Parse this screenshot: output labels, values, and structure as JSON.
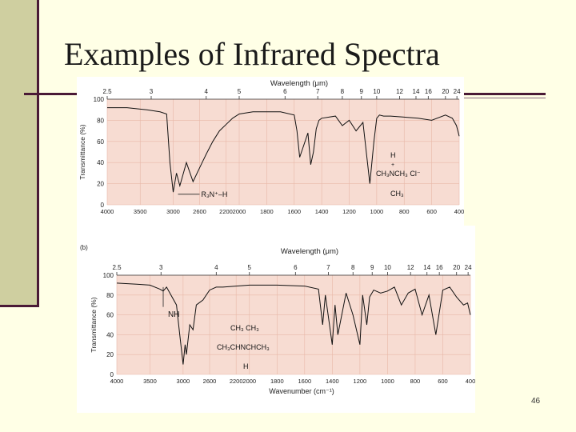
{
  "slide": {
    "title": "Examples of Infrared Spectra",
    "slide_number": "46",
    "colors": {
      "left_bar": "#cfcfa0",
      "accent": "#4a1a36",
      "background": "#ffffe6",
      "plot_fill": "#f7dcd2"
    }
  },
  "chart_data": [
    {
      "type": "line",
      "xlabel": "",
      "top_label": "Wavelength (μm)",
      "ylabel": "Transmittance (%)",
      "xlim": [
        4000,
        400
      ],
      "ylim": [
        0,
        100
      ],
      "x_ticks": [
        "4000",
        "3500",
        "3000",
        "2600",
        "2200",
        "2000",
        "1800",
        "1600",
        "1400",
        "1200",
        "1000",
        "800",
        "600",
        "400"
      ],
      "y_ticks": [
        "100",
        "80",
        "60",
        "40",
        "20",
        "0"
      ],
      "wavelength_ticks": [
        "2.5",
        "3",
        "4",
        "5",
        "6",
        "7",
        "8",
        "9",
        "10",
        "12",
        "14",
        "16",
        "20",
        "24"
      ],
      "annotations": {
        "peak": "R₃N⁺–H",
        "structure": [
          "H",
          "+",
          "CH₃NCH₃  Cl⁻",
          "CH₃"
        ]
      },
      "series": [
        {
          "x": [
            4000,
            3700,
            3400,
            3200,
            3100,
            3050,
            3000,
            2950,
            2900,
            2800,
            2700,
            2600,
            2500,
            2400,
            2300,
            2200,
            2100,
            2000,
            1900,
            1800,
            1700,
            1600,
            1580,
            1560,
            1500,
            1480,
            1460,
            1440,
            1420,
            1400,
            1300,
            1250,
            1200,
            1150,
            1100,
            1050,
            1020,
            1000,
            980,
            950,
            900,
            800,
            700,
            600,
            500,
            450,
            420,
            400
          ],
          "y": [
            92,
            92,
            90,
            88,
            86,
            40,
            12,
            30,
            18,
            40,
            22,
            35,
            48,
            60,
            70,
            76,
            82,
            86,
            88,
            88,
            88,
            85,
            70,
            45,
            68,
            38,
            50,
            72,
            80,
            82,
            84,
            75,
            80,
            70,
            78,
            20,
            60,
            82,
            85,
            84,
            84,
            83,
            82,
            80,
            85,
            82,
            75,
            65
          ]
        }
      ]
    },
    {
      "type": "line",
      "label": "(b)",
      "xlabel": "Wavenumber (cm⁻¹)",
      "top_label": "Wavelength (μm)",
      "ylabel": "Transmittance (%)",
      "xlim": [
        4000,
        400
      ],
      "ylim": [
        0,
        100
      ],
      "x_ticks": [
        "4000",
        "3500",
        "3000",
        "2600",
        "2200",
        "2000",
        "1800",
        "1600",
        "1400",
        "1200",
        "1000",
        "800",
        "600",
        "400"
      ],
      "y_ticks": [
        "100",
        "80",
        "60",
        "40",
        "20",
        "0"
      ],
      "wavelength_ticks": [
        "2.5",
        "3",
        "4",
        "5",
        "6",
        "7",
        "8",
        "9",
        "10",
        "12",
        "14",
        "16",
        "20",
        "24"
      ],
      "annotations": {
        "peak": "NH",
        "structure": [
          "CH₃ CH₃",
          "CH₃CHNCHCH₃",
          "H"
        ]
      },
      "series": [
        {
          "x": [
            4000,
            3700,
            3500,
            3350,
            3300,
            3250,
            3100,
            3050,
            3000,
            2970,
            2950,
            2900,
            2850,
            2800,
            2700,
            2600,
            2500,
            2400,
            2200,
            2000,
            1800,
            1600,
            1500,
            1470,
            1450,
            1400,
            1380,
            1360,
            1300,
            1250,
            1200,
            1180,
            1150,
            1130,
            1100,
            1050,
            1000,
            950,
            900,
            850,
            800,
            750,
            700,
            650,
            600,
            550,
            500,
            450,
            420,
            400
          ],
          "y": [
            92,
            91,
            90,
            86,
            84,
            88,
            70,
            40,
            10,
            30,
            20,
            50,
            45,
            70,
            75,
            85,
            88,
            88,
            89,
            90,
            90,
            89,
            86,
            50,
            80,
            30,
            70,
            40,
            82,
            60,
            30,
            80,
            50,
            78,
            85,
            82,
            84,
            88,
            70,
            82,
            86,
            60,
            80,
            40,
            85,
            88,
            78,
            70,
            72,
            60
          ]
        }
      ]
    }
  ]
}
